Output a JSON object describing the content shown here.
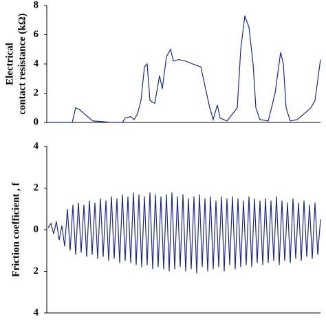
{
  "chart_data": [
    {
      "type": "line",
      "ylabel": [
        "Electrical",
        "contact resistance (kΩ)"
      ],
      "color": "#1c2a80",
      "xlim": [
        0,
        398
      ],
      "ylim": [
        0,
        8
      ],
      "yticks": [
        0,
        2,
        4,
        6,
        8
      ],
      "x": [
        0,
        37,
        42,
        47,
        57,
        67,
        82,
        92,
        110,
        114,
        122,
        127,
        132,
        137,
        142,
        146,
        150,
        157,
        164,
        168,
        174,
        180,
        184,
        192,
        202,
        212,
        224,
        230,
        237,
        242,
        248,
        252,
        262,
        277,
        282,
        288,
        294,
        300,
        304,
        310,
        322,
        332,
        340,
        344,
        348,
        354,
        364,
        372,
        384,
        390,
        398
      ],
      "values": [
        0,
        0,
        1.0,
        0.9,
        0.5,
        0.1,
        0.05,
        0,
        0,
        0.3,
        0.4,
        0.2,
        0.6,
        1.5,
        3.8,
        4.0,
        1.5,
        1.3,
        3.2,
        2.3,
        4.5,
        5.0,
        4.2,
        4.3,
        4.2,
        4.0,
        3.8,
        2.5,
        1.0,
        0.2,
        1.2,
        0.3,
        0.1,
        1.0,
        5.0,
        7.3,
        6.5,
        4.0,
        1.0,
        0.2,
        0.1,
        2.0,
        4.8,
        4.0,
        1.0,
        0.1,
        0.2,
        0.5,
        1.0,
        1.5,
        4.3
      ]
    },
    {
      "type": "line",
      "ylabel": [
        "Friction coefficient , f"
      ],
      "color": "#1c2a80",
      "ylim": [
        -4,
        4
      ],
      "yticks": [
        {
          "value": -4,
          "label": "4"
        },
        {
          "value": -2,
          "label": "2"
        },
        0,
        2,
        4
      ],
      "values": [
        0.1,
        0.3,
        -0.2,
        0.4,
        -0.5,
        0.2,
        -0.8,
        1.0,
        -1.0,
        1.2,
        -1.2,
        1.3,
        -1.1,
        1.2,
        -1.3,
        1.4,
        -1.2,
        1.3,
        -1.4,
        1.5,
        -1.3,
        1.4,
        -1.5,
        1.6,
        -1.4,
        1.5,
        -1.6,
        1.7,
        -1.5,
        1.6,
        -1.6,
        1.8,
        -1.7,
        1.7,
        -1.8,
        1.6,
        -1.7,
        1.8,
        -1.9,
        1.7,
        -1.8,
        1.6,
        -1.9,
        1.7,
        -2.0,
        1.8,
        -1.9,
        1.6,
        -1.8,
        1.7,
        -2.0,
        1.5,
        -1.9,
        1.6,
        -2.1,
        1.7,
        -1.8,
        1.5,
        -2.0,
        1.6,
        -1.9,
        1.4,
        -1.8,
        1.6,
        -2.0,
        1.5,
        -1.7,
        1.6,
        -1.9,
        1.5,
        -1.8,
        1.4,
        -1.7,
        1.6,
        -1.8,
        1.5,
        -1.6,
        1.4,
        -1.7,
        1.5,
        -1.6,
        1.4,
        -1.5,
        1.6,
        -1.7,
        1.4,
        -1.5,
        1.3,
        -1.6,
        1.5,
        -1.4,
        1.3,
        -1.5,
        1.4,
        -1.3,
        1.2,
        -1.4,
        1.3,
        -1.2,
        0.5
      ]
    }
  ]
}
